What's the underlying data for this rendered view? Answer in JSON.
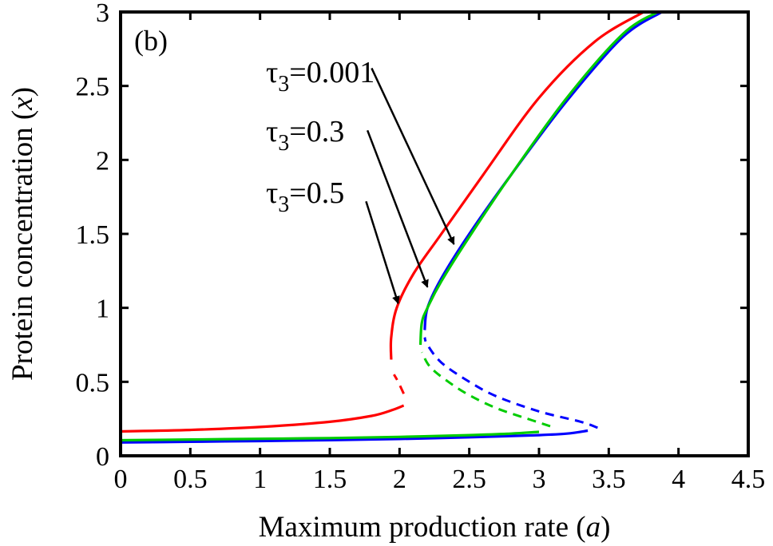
{
  "chart_data": {
    "type": "line",
    "panel_label": "(b)",
    "xlabel": {
      "text": "Maximum production rate (",
      "var": "a",
      "close": ")"
    },
    "ylabel": {
      "text": "Protein concentration (",
      "var": "x",
      "close": ")"
    },
    "xlim": [
      0,
      4.5
    ],
    "ylim": [
      0,
      3
    ],
    "xticks": [
      "0",
      "0.5",
      "1",
      "1.5",
      "2",
      "2.5",
      "3",
      "3.5",
      "4",
      "4.5"
    ],
    "yticks": [
      "0",
      "0.5",
      "1",
      "1.5",
      "2",
      "2.5",
      "3"
    ],
    "grid": false,
    "series": [
      {
        "name": "τ3=0.001",
        "color": "#0000ff",
        "stable_low": [
          [
            0,
            0.09
          ],
          [
            0.5,
            0.095
          ],
          [
            1.0,
            0.1
          ],
          [
            1.5,
            0.106
          ],
          [
            2.0,
            0.114
          ],
          [
            2.5,
            0.125
          ],
          [
            3.0,
            0.14
          ],
          [
            3.2,
            0.15
          ],
          [
            3.35,
            0.17
          ]
        ],
        "unstable": [
          [
            3.42,
            0.19
          ],
          [
            3.3,
            0.23
          ],
          [
            3.0,
            0.3
          ],
          [
            2.7,
            0.4
          ],
          [
            2.5,
            0.5
          ],
          [
            2.3,
            0.63
          ],
          [
            2.2,
            0.75
          ],
          [
            2.18,
            0.8
          ]
        ],
        "stable_high": [
          [
            2.18,
            0.85
          ],
          [
            2.2,
            1.0
          ],
          [
            2.3,
            1.2
          ],
          [
            2.5,
            1.5
          ],
          [
            2.8,
            1.9
          ],
          [
            3.2,
            2.4
          ],
          [
            3.6,
            2.83
          ],
          [
            3.88,
            3.0
          ]
        ]
      },
      {
        "name": "τ3=0.3",
        "color": "#00cc00",
        "stable_low": [
          [
            0,
            0.105
          ],
          [
            0.5,
            0.11
          ],
          [
            1.0,
            0.115
          ],
          [
            1.5,
            0.12
          ],
          [
            2.0,
            0.128
          ],
          [
            2.5,
            0.14
          ],
          [
            2.8,
            0.15
          ],
          [
            3.0,
            0.162
          ]
        ],
        "unstable": [
          [
            3.08,
            0.2
          ],
          [
            2.95,
            0.24
          ],
          [
            2.7,
            0.32
          ],
          [
            2.5,
            0.41
          ],
          [
            2.35,
            0.5
          ],
          [
            2.22,
            0.6
          ],
          [
            2.16,
            0.7
          ]
        ],
        "stable_high": [
          [
            2.15,
            0.75
          ],
          [
            2.16,
            0.9
          ],
          [
            2.2,
            1.0
          ],
          [
            2.3,
            1.18
          ],
          [
            2.5,
            1.48
          ],
          [
            2.8,
            1.9
          ],
          [
            3.2,
            2.42
          ],
          [
            3.6,
            2.85
          ],
          [
            3.85,
            3.0
          ]
        ]
      },
      {
        "name": "τ3=0.5",
        "color": "#ff0000",
        "stable_low": [
          [
            0,
            0.165
          ],
          [
            0.5,
            0.175
          ],
          [
            1.0,
            0.195
          ],
          [
            1.5,
            0.23
          ],
          [
            1.8,
            0.27
          ],
          [
            1.95,
            0.31
          ],
          [
            2.03,
            0.34
          ]
        ],
        "unstable": [
          [
            2.03,
            0.42
          ],
          [
            1.99,
            0.5
          ],
          [
            1.96,
            0.55
          ]
        ],
        "stable_high": [
          [
            1.94,
            0.65
          ],
          [
            1.94,
            0.8
          ],
          [
            1.98,
            1.0
          ],
          [
            2.1,
            1.23
          ],
          [
            2.3,
            1.5
          ],
          [
            2.6,
            1.9
          ],
          [
            3.0,
            2.42
          ],
          [
            3.4,
            2.8
          ],
          [
            3.75,
            3.0
          ]
        ]
      }
    ],
    "annotations": [
      {
        "label": "τ3=0.001",
        "sym": "τ",
        "sub": "3",
        "rest": "=0.001",
        "from": [
          1.8,
          2.62
        ],
        "to": [
          2.39,
          1.43
        ]
      },
      {
        "label": "τ3=0.3",
        "sym": "τ",
        "sub": "3",
        "rest": "=0.3",
        "from": [
          1.77,
          2.2
        ],
        "to": [
          2.2,
          1.14
        ]
      },
      {
        "label": "τ3=0.5",
        "sym": "τ",
        "sub": "3",
        "rest": "=0.5",
        "from": [
          1.76,
          1.72
        ],
        "to": [
          1.99,
          1.03
        ]
      }
    ]
  }
}
